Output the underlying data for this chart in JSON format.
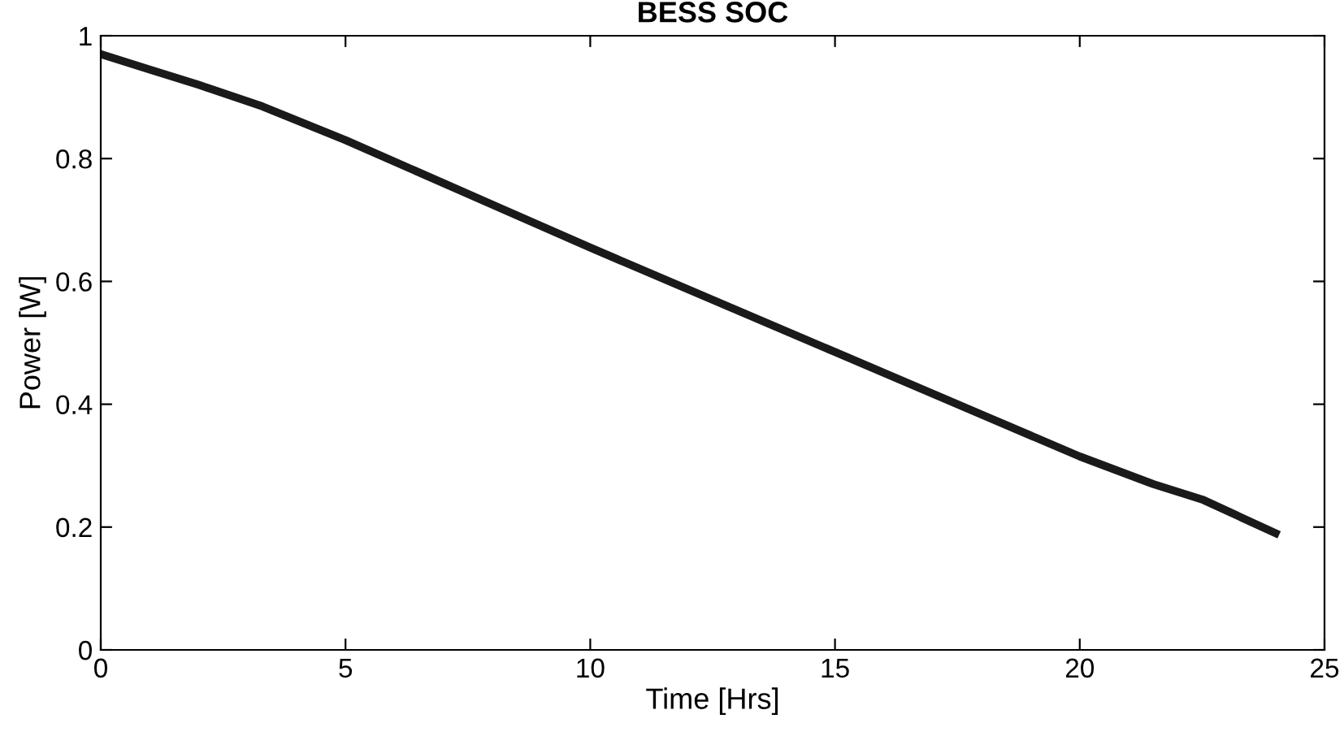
{
  "chart_data": {
    "type": "line",
    "title": "BESS SOC",
    "xlabel": "Time [Hrs]",
    "ylabel": "Power [W]",
    "x": [
      0,
      1,
      2,
      3.3,
      5,
      10,
      15,
      20,
      21.5,
      22.5,
      24
    ],
    "series": [
      {
        "color": "#1a1a1a",
        "values": [
          0.97,
          0.945,
          0.92,
          0.885,
          0.83,
          0.655,
          0.485,
          0.315,
          0.27,
          0.245,
          0.19
        ]
      }
    ],
    "xlim": [
      0,
      25
    ],
    "ylim": [
      0,
      1
    ],
    "xticks": [
      0,
      5,
      10,
      15,
      20,
      25
    ],
    "yticks": [
      0,
      0.2,
      0.4,
      0.6,
      0.8,
      1
    ],
    "grid": false,
    "marker": "none",
    "line_style": "solid"
  }
}
